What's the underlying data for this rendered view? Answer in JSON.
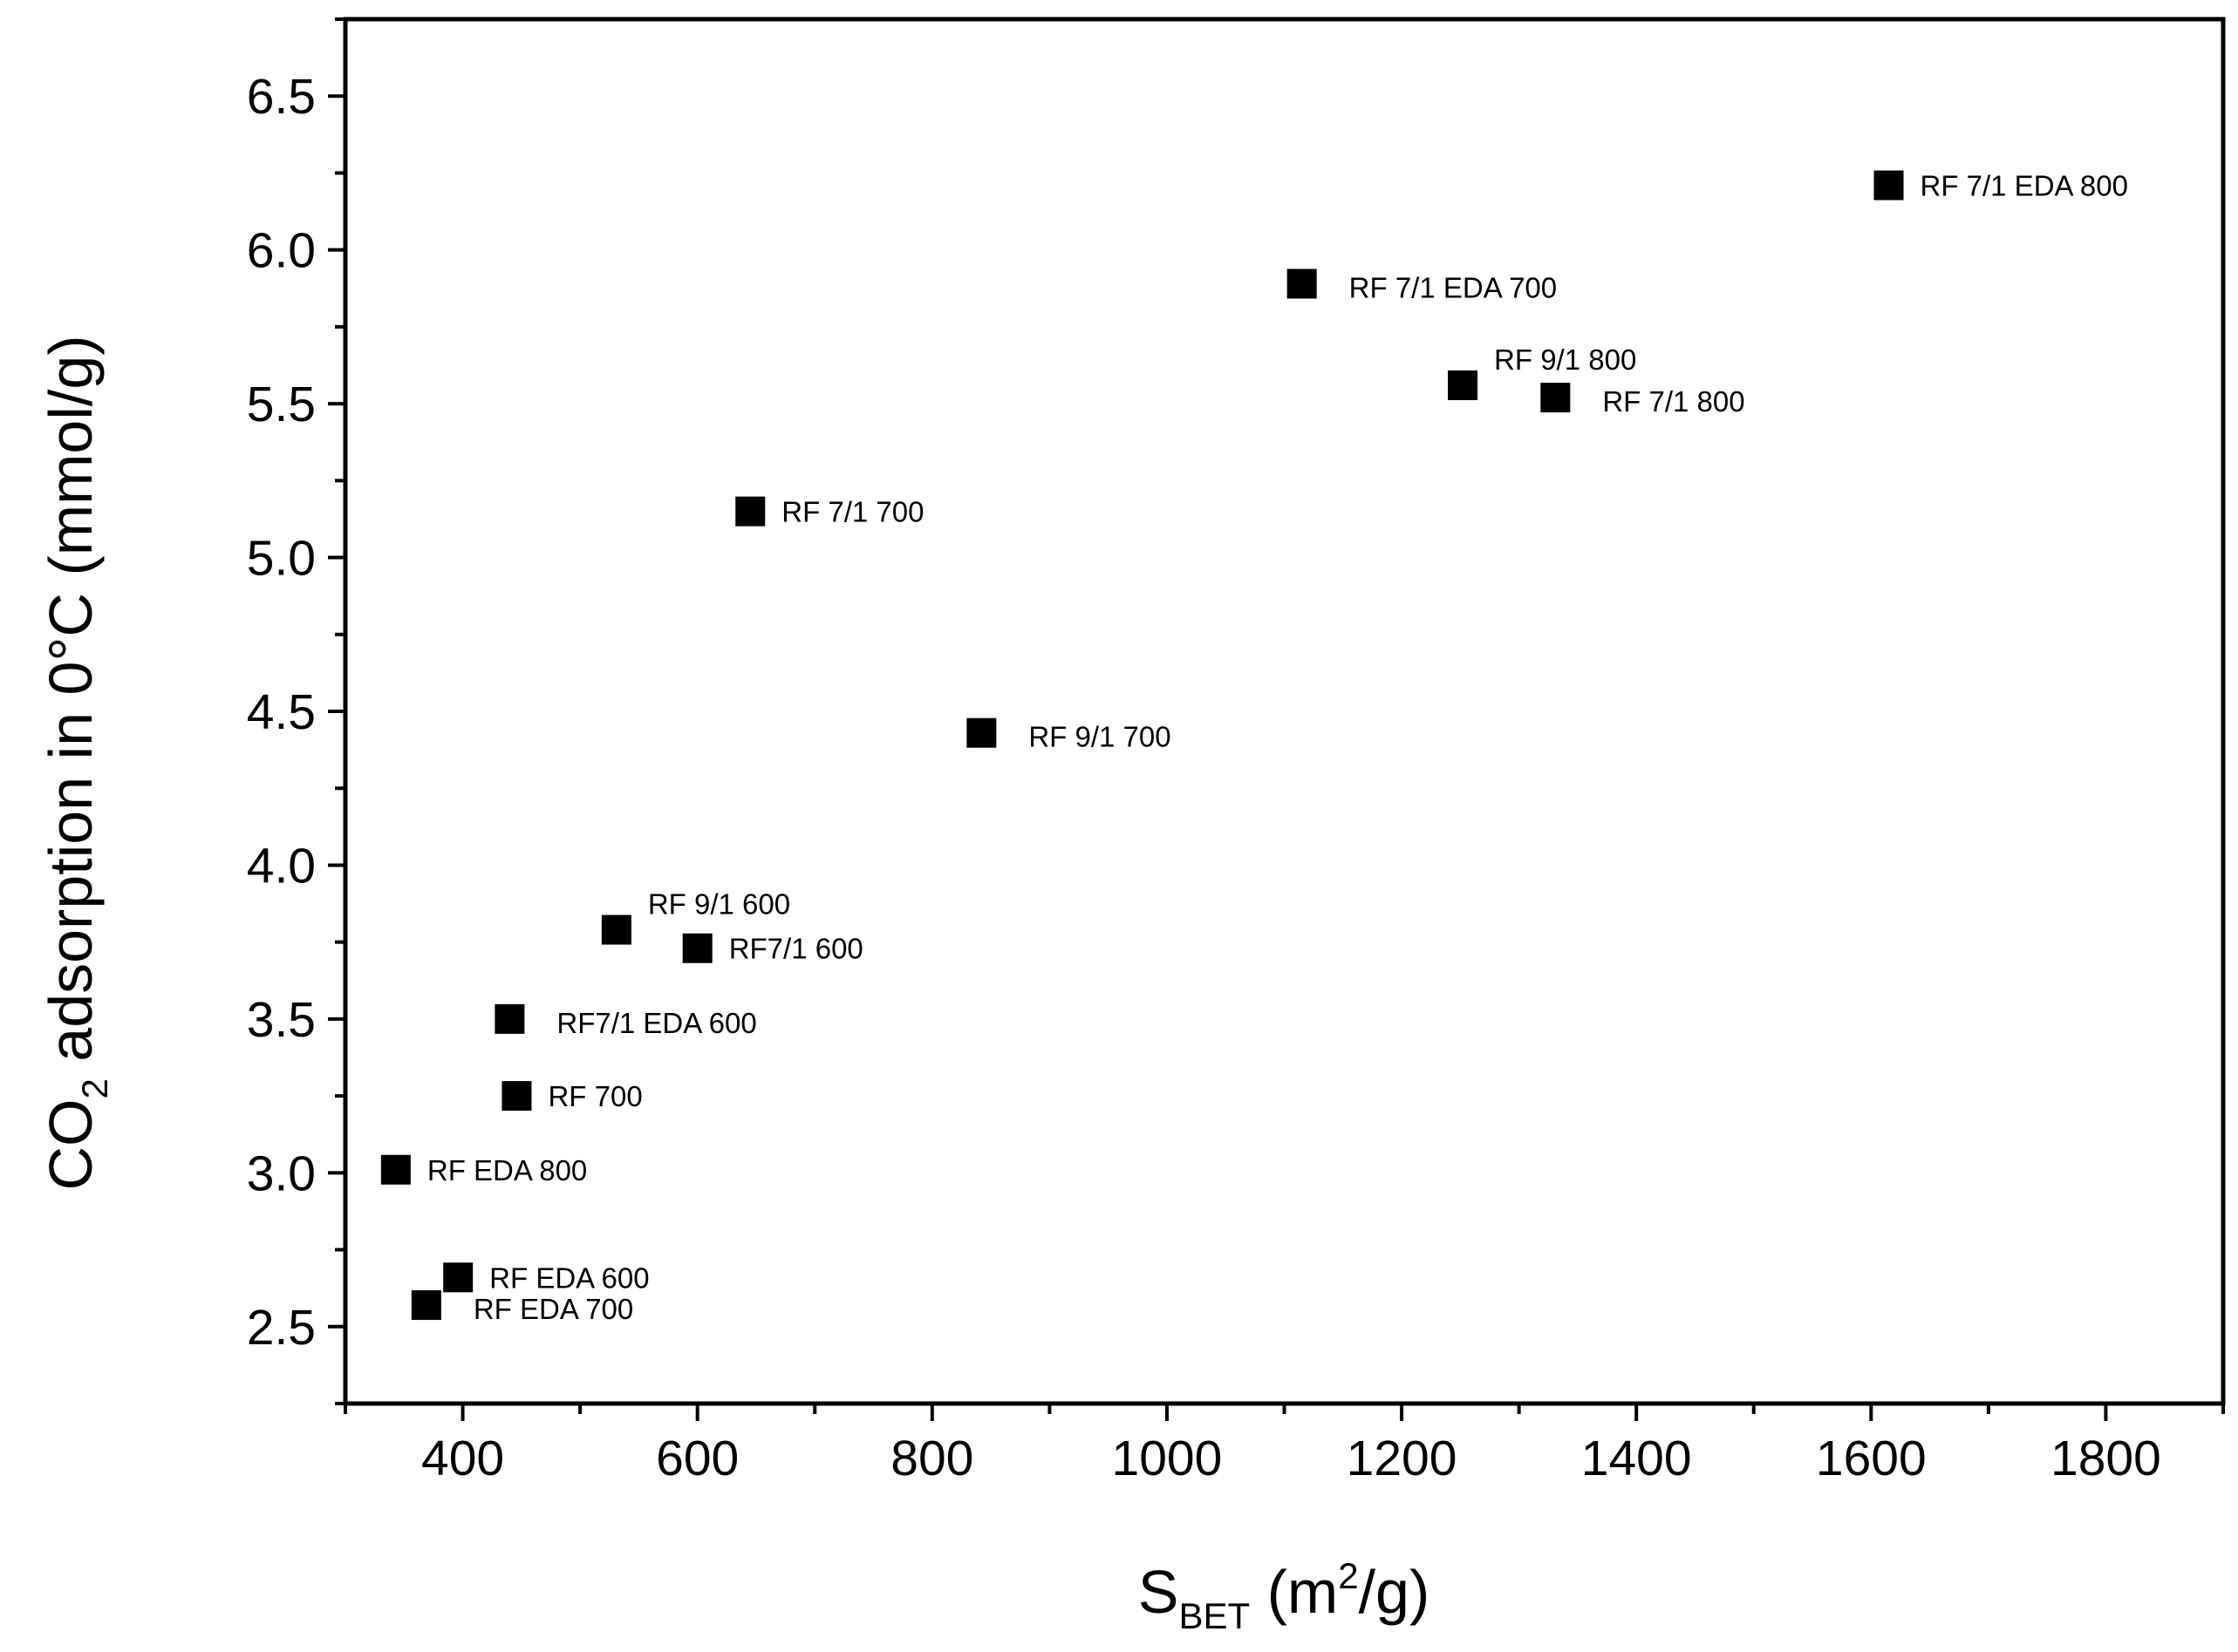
{
  "chart_data": {
    "type": "scatter",
    "title": "",
    "xlabel": {
      "main": "S",
      "sub": "BET",
      "unit_pre": " (m",
      "sup": "2",
      "unit_post": "/g)"
    },
    "ylabel": {
      "pre": "CO",
      "sub": "2",
      "post": " adsorption in 0°C (mmol/g)"
    },
    "xlim": [
      300,
      1900
    ],
    "ylim": [
      2.25,
      6.75
    ],
    "x_ticks": [
      400,
      600,
      800,
      1000,
      1200,
      1400,
      1600,
      1800
    ],
    "x_tick_labels": [
      "400",
      "600",
      "800",
      "1000",
      "1200",
      "1400",
      "1600",
      "1800"
    ],
    "y_ticks": [
      2.5,
      3.0,
      3.5,
      4.0,
      4.5,
      5.0,
      5.5,
      6.0,
      6.5
    ],
    "y_tick_labels": [
      "2.5",
      "3.0",
      "3.5",
      "4.0",
      "4.5",
      "5.0",
      "5.5",
      "6.0",
      "6.5"
    ],
    "marker": "square",
    "marker_color": "#000000",
    "points": [
      {
        "label": "RF 7/1 EDA 800",
        "x": 1615,
        "y": 6.21,
        "label_pos": "right"
      },
      {
        "label": "RF 7/1 EDA 700",
        "x": 1115,
        "y": 5.89,
        "label_pos": "right-low"
      },
      {
        "label": "RF 9/1 800",
        "x": 1252,
        "y": 5.56,
        "label_pos": "upper-right"
      },
      {
        "label": "RF 7/1 800",
        "x": 1331,
        "y": 5.52,
        "label_pos": "right-low"
      },
      {
        "label": "RF 7/1 700",
        "x": 645,
        "y": 5.15,
        "label_pos": "right"
      },
      {
        "label": "RF 9/1 700",
        "x": 842,
        "y": 4.43,
        "label_pos": "right-low"
      },
      {
        "label": "RF 9/1 600",
        "x": 531,
        "y": 3.79,
        "label_pos": "upper-right"
      },
      {
        "label": "RF7/1 600",
        "x": 600,
        "y": 3.73,
        "label_pos": "right"
      },
      {
        "label": "RF7/1 EDA 600",
        "x": 440,
        "y": 3.5,
        "label_pos": "right-low"
      },
      {
        "label": "RF 700",
        "x": 446,
        "y": 3.25,
        "label_pos": "right"
      },
      {
        "label": "RF EDA 800",
        "x": 343,
        "y": 3.01,
        "label_pos": "right"
      },
      {
        "label": "RF EDA 600",
        "x": 396,
        "y": 2.66,
        "label_pos": "right"
      },
      {
        "label": "RF EDA 700",
        "x": 369,
        "y": 2.57,
        "label_pos": "right-low"
      }
    ]
  }
}
